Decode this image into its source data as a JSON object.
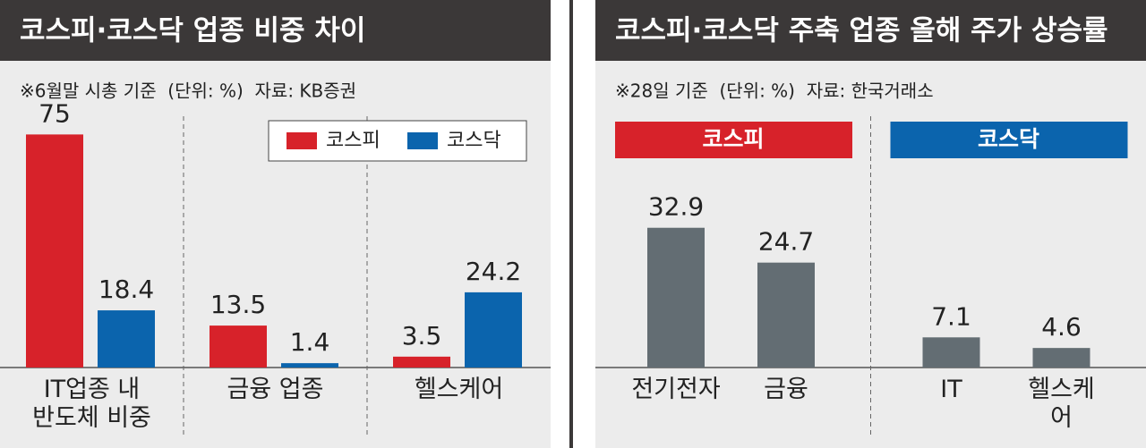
{
  "chart_data": [
    {
      "type": "bar",
      "title": "코스피·코스닥 업종 비중 차이",
      "note": "※6월말 시총 기준  (단위: %)  자료: KB증권",
      "categories": [
        "IT업종 내\n반도체 비중",
        "금융 업종",
        "헬스케어"
      ],
      "series": [
        {
          "name": "코스피",
          "color": "#d7222a",
          "values": [
            75,
            13.5,
            3.5
          ]
        },
        {
          "name": "코스닥",
          "color": "#0b64ad",
          "values": [
            18.4,
            1.4,
            24.2
          ]
        }
      ],
      "ylim": [
        0,
        80
      ],
      "legend": "top-right"
    },
    {
      "type": "bar",
      "title": "코스피·코스닥 주축 업종 올해 주가 상승률",
      "note": "※28일 기준  (단위: %)  자료: 한국거래소",
      "color": "#636d73",
      "groups": [
        {
          "name": "코스피",
          "color": "#d7222a",
          "categories": [
            "전기전자",
            "금융"
          ],
          "values": [
            32.9,
            24.7
          ]
        },
        {
          "name": "코스닥",
          "color": "#0b64ad",
          "categories": [
            "IT",
            "헬스케어"
          ],
          "values": [
            7.1,
            4.6
          ]
        }
      ],
      "ylim": [
        0,
        40
      ]
    }
  ]
}
